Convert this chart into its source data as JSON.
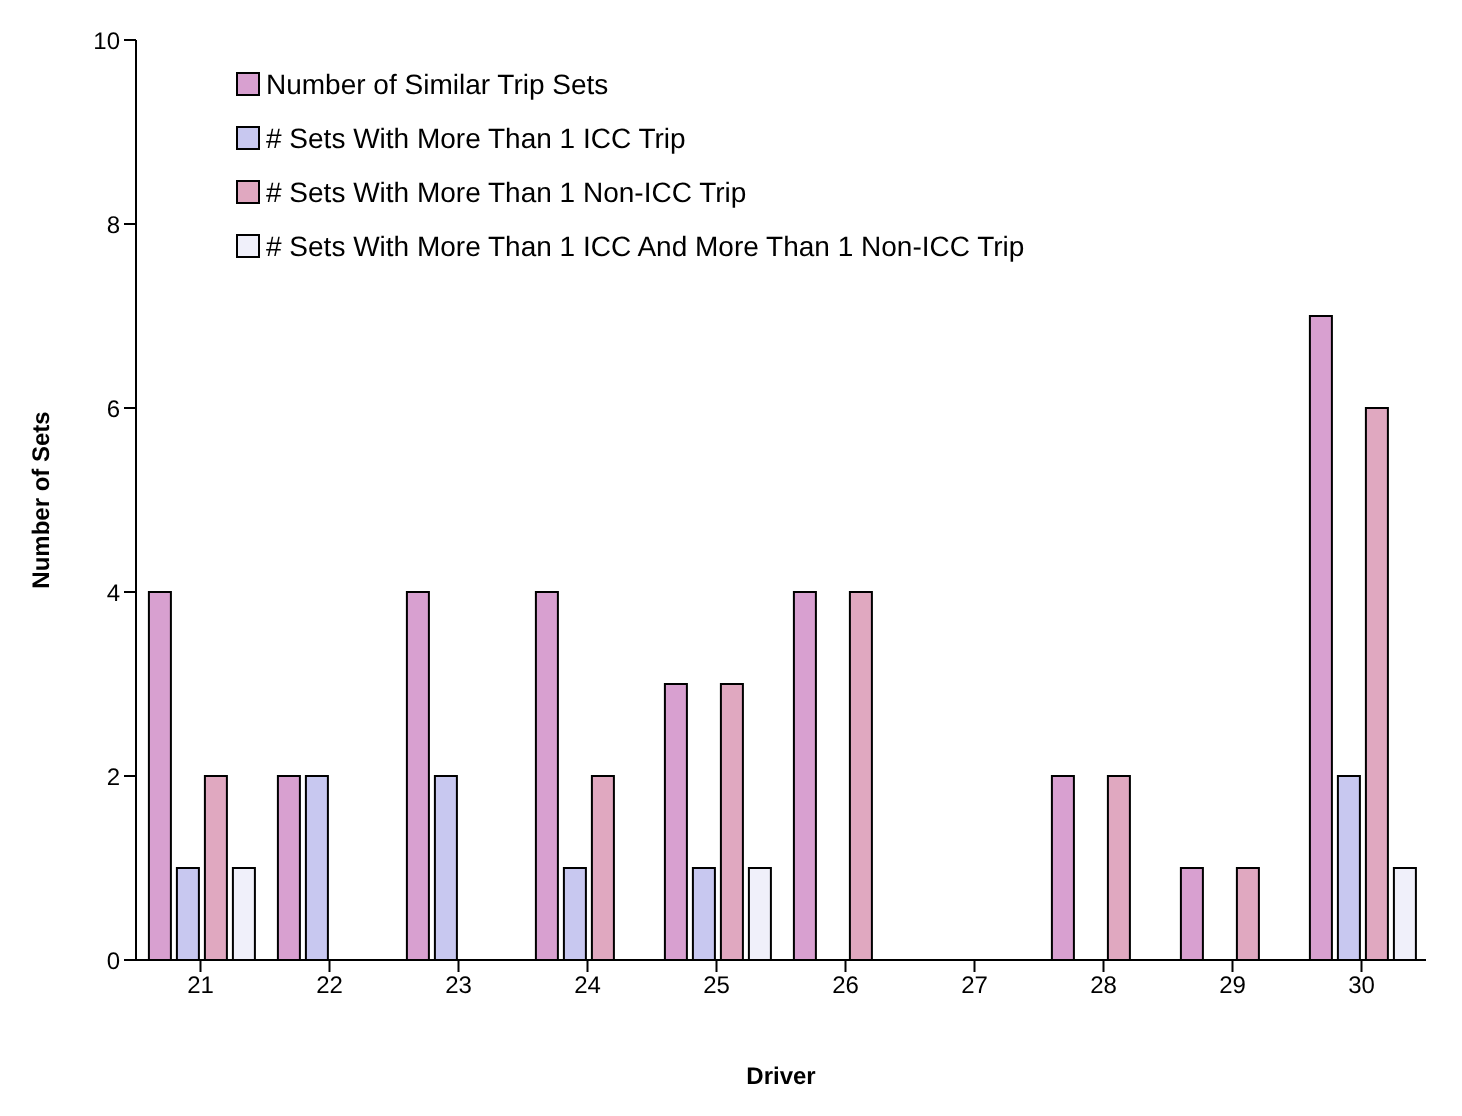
{
  "chart_data": {
    "type": "bar",
    "xlabel": "Driver",
    "ylabel": "Number of Sets",
    "categories": [
      "21",
      "22",
      "23",
      "24",
      "25",
      "26",
      "27",
      "28",
      "29",
      "30"
    ],
    "series": [
      {
        "name": "Number of Similar Trip Sets",
        "color": "#d8a0d0",
        "values": [
          4,
          2,
          4,
          4,
          3,
          4,
          0,
          2,
          1,
          7
        ]
      },
      {
        "name": "# Sets With More Than 1 ICC Trip",
        "color": "#c8c8f0",
        "values": [
          1,
          2,
          2,
          1,
          1,
          0,
          0,
          0,
          0,
          2
        ]
      },
      {
        "name": "# Sets With More Than 1 Non-ICC Trip",
        "color": "#e0a8c0",
        "values": [
          2,
          0,
          0,
          2,
          3,
          4,
          0,
          2,
          1,
          6
        ]
      },
      {
        "name": "# Sets With More Than 1 ICC And More Than 1 Non-ICC Trip",
        "color": "#f0f0fa",
        "values": [
          1,
          0,
          0,
          0,
          1,
          0,
          0,
          0,
          0,
          1
        ]
      }
    ],
    "ylim": [
      0,
      10
    ],
    "yticks": [
      0,
      2,
      4,
      6,
      8,
      10
    ],
    "grid": false,
    "legend": "top left"
  }
}
